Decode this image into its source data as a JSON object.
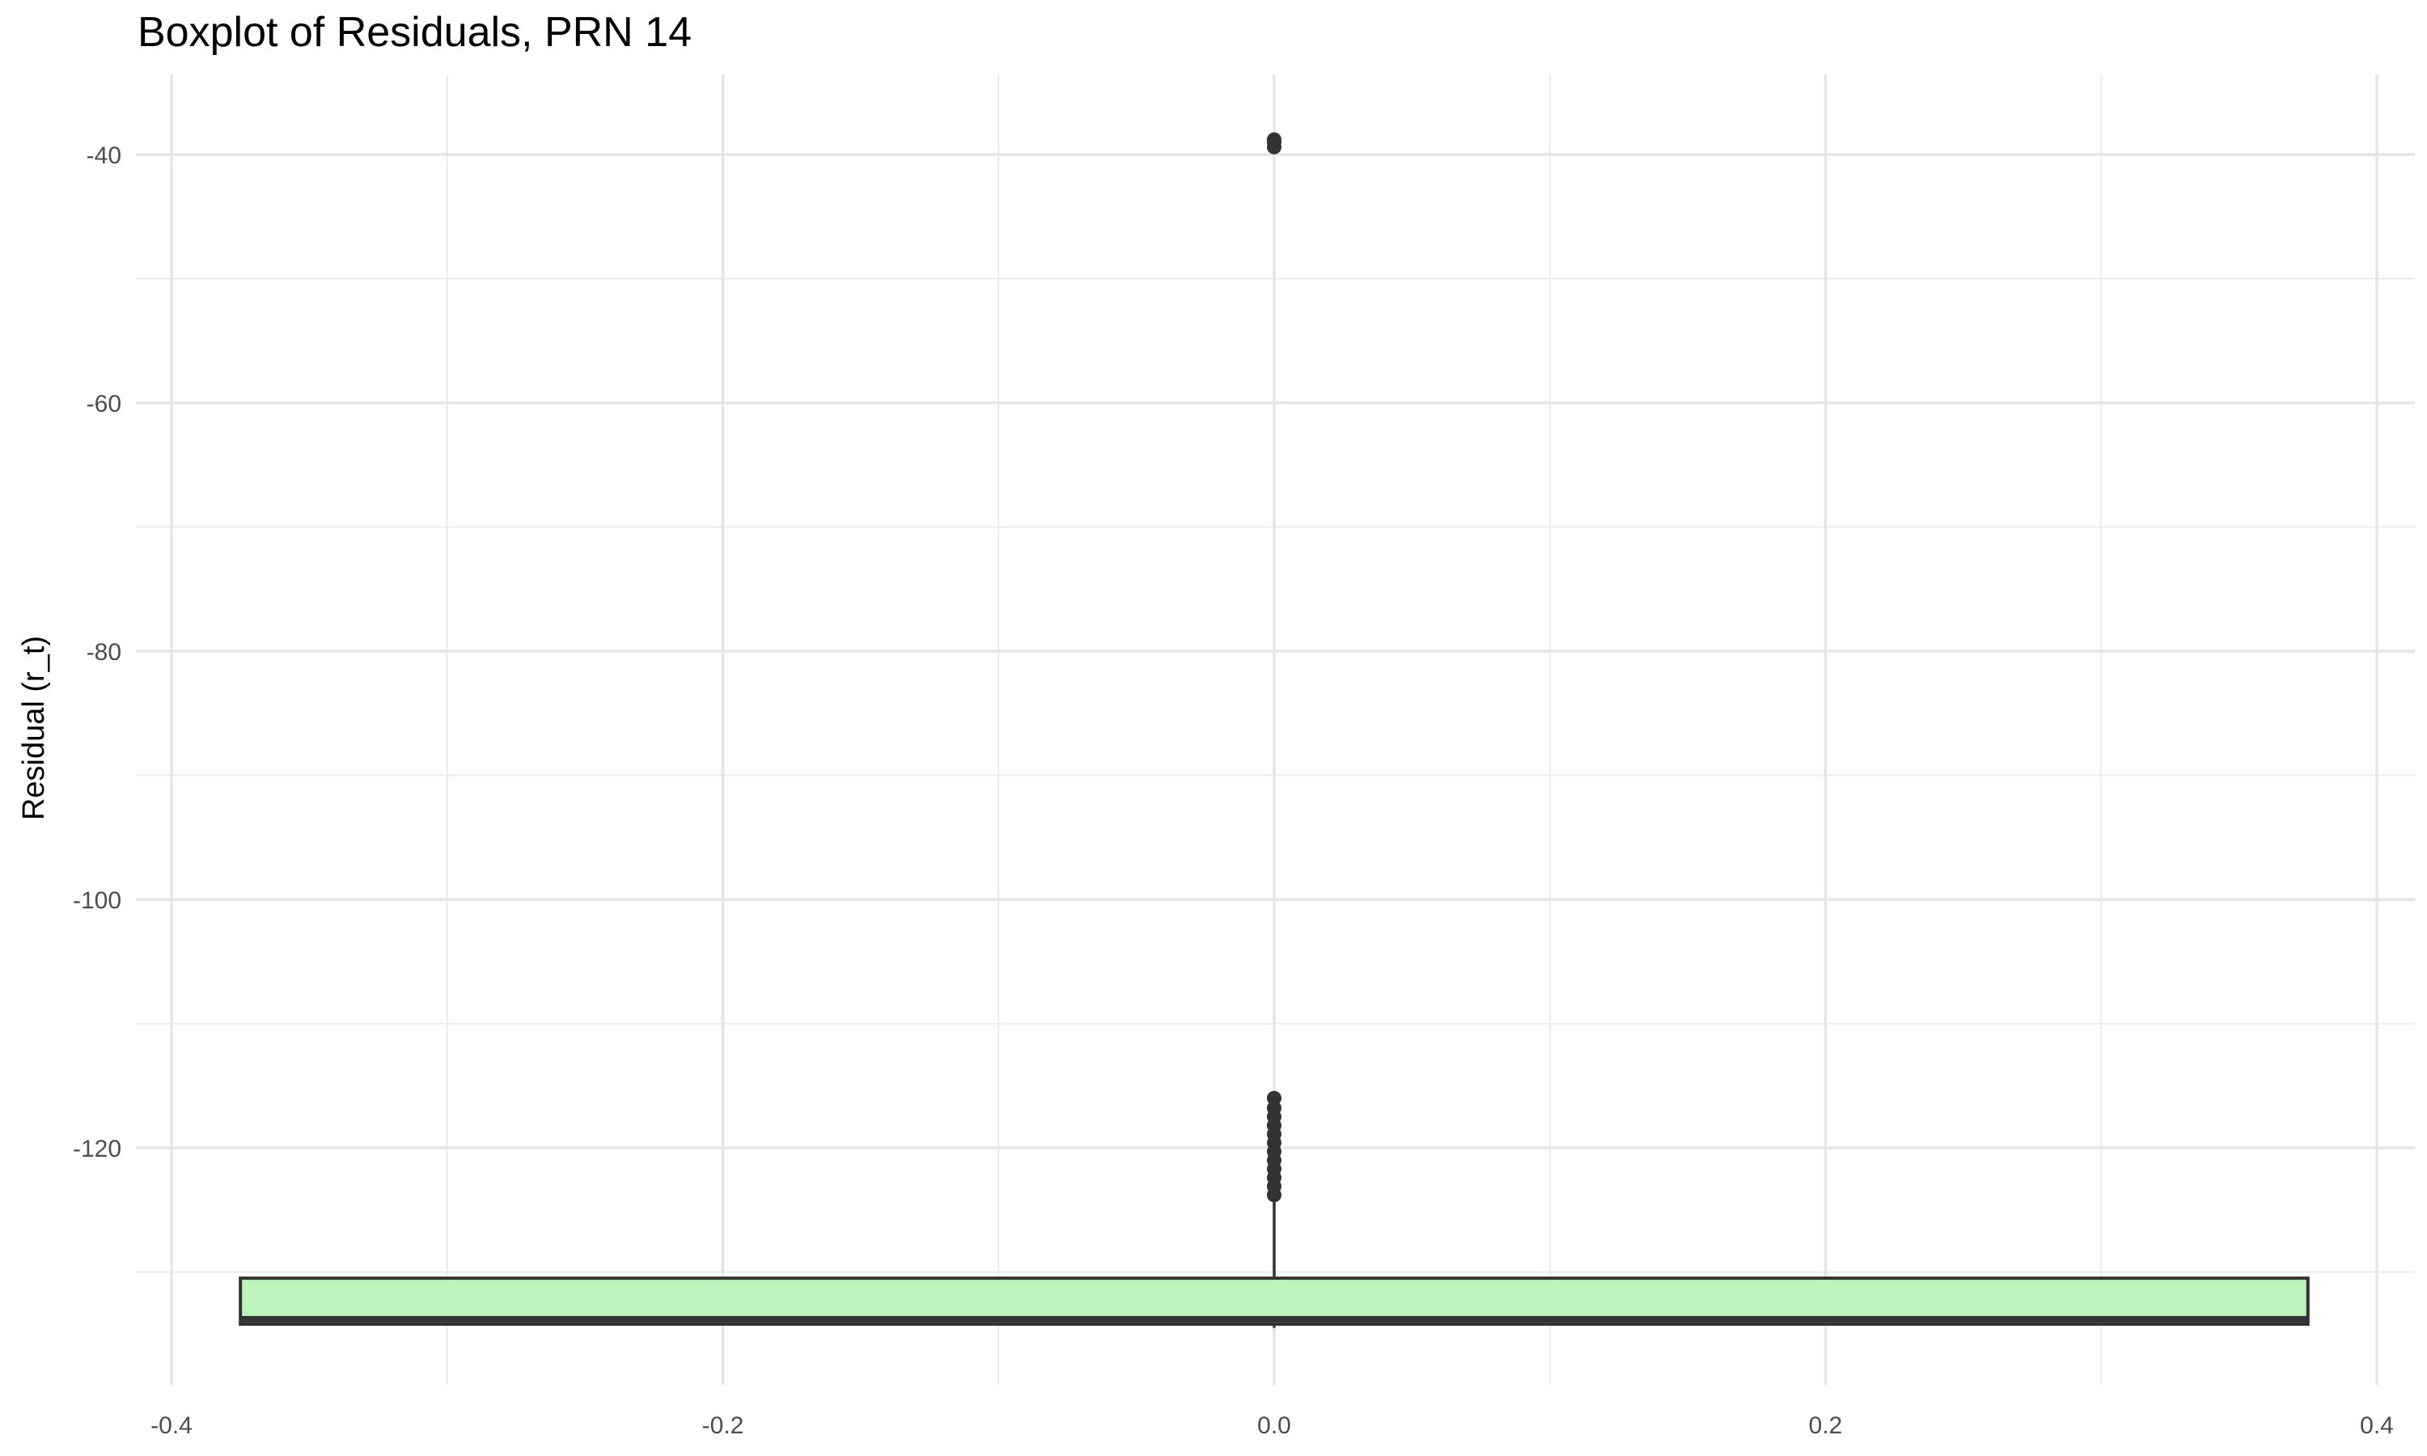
{
  "chart_data": {
    "type": "boxplot",
    "title": "Boxplot of Residuals, PRN 14",
    "xlabel": "",
    "ylabel": "Residual (r_t)",
    "xlim": [
      -0.4,
      0.4
    ],
    "ylim": [
      -137,
      -31
    ],
    "x_ticks": [
      -0.4,
      -0.2,
      0.0,
      0.2,
      0.4
    ],
    "x_tick_labels": [
      "-0.4",
      "-0.2",
      "0.0",
      "0.2",
      "0.4"
    ],
    "y_ticks": [
      -40,
      -60,
      -80,
      -100,
      -120
    ],
    "y_tick_labels": [
      "-40",
      "-60",
      "-80",
      "-100",
      "-120"
    ],
    "grid": true,
    "box": {
      "x_center": 0.0,
      "x_left": -0.375,
      "x_right": 0.375,
      "q1": -134.2,
      "median": -133.8,
      "q3": -130.5,
      "whisker_low": -134.5,
      "whisker_high": -124.0,
      "fill": "#bdf4bc",
      "stroke": "#333333"
    },
    "outliers": [
      -39.0,
      -39.4,
      -38.8,
      -116.0,
      -116.8,
      -117.5,
      -118.2,
      -118.9,
      -119.6,
      -120.3,
      -121.0,
      -121.7,
      -122.4,
      -123.1,
      -123.8
    ]
  }
}
